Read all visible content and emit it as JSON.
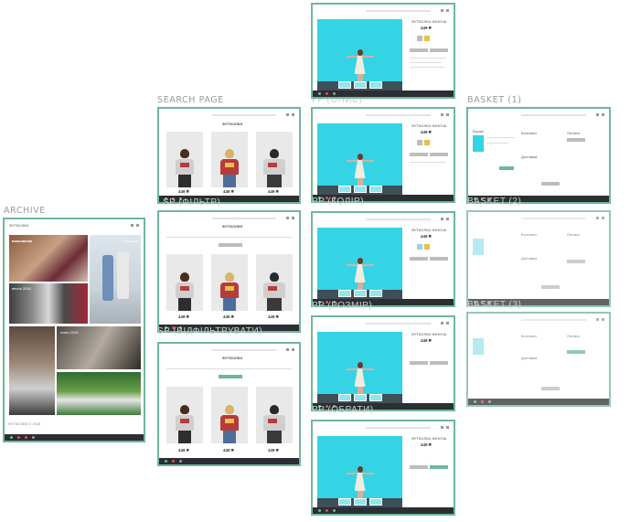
{
  "labels": {
    "archive": "ARCHIVE",
    "search_page": "SEARCH PAGE",
    "basket_1": "BASKET (1)",
    "pp_opys": "PP (ОПИС)",
    "pp_kolir": "PP (КОЛІР)",
    "pp_rozmir": "PP (РОЗМІР)",
    "pp_obraty": "PP (ОБРАТИ)",
    "search_filtr": "SP (ФІЛЬТР)",
    "search_vidfiltruvaty": "SP (ВІДФІЛЬТРУВАТИ)",
    "basket_2": "BASKET (2)",
    "basket_3": "BASKET (3)"
  },
  "screens": {
    "search_heading": "ФУТБОЛКИ",
    "search_filter_button": "ВІДФІЛЬТРУВАТИ",
    "product_price": "449 ₴",
    "product_prices": [
      "449 ₴",
      "449 ₴",
      "449 ₴"
    ],
    "product_names": [
      "ФУТБОЛКА ЖІНОЧА",
      "ФУТБОЛКА ДИТЯЧА",
      "ФУТБОЛКА ЧОЛОВІЧА"
    ],
    "basket_steps": [
      "Кошик",
      "Контакти",
      "Оплата",
      "Доставка"
    ],
    "archive_captions": [
      "вишиванка",
      "колекція",
      "весна 2016",
      "осінь 2015"
    ]
  },
  "colors": {
    "frame_border": "#6fb799",
    "taskbar": "#2b2f33",
    "hero_cyan": "#35d4e4",
    "print_red": "#b73b3b"
  }
}
